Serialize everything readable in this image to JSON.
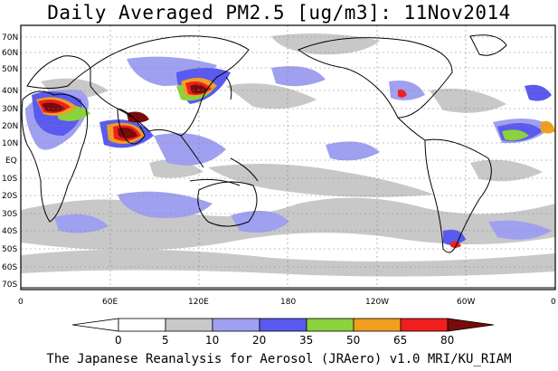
{
  "title": "Daily Averaged PM2.5 [ug/m3]: 11Nov2014",
  "credit": "The Japanese Reanalysis for Aerosol (JRAero) v1.0 MRI/KU_RIAM",
  "lat_labels": [
    "70N",
    "60N",
    "50N",
    "40N",
    "30N",
    "20N",
    "10N",
    "EQ",
    "10S",
    "20S",
    "30S",
    "40S",
    "50S",
    "60S",
    "70S"
  ],
  "lon_labels": [
    "0",
    "60E",
    "120E",
    "180",
    "120W",
    "60W",
    "0"
  ],
  "colorbar": {
    "levels": [
      "0",
      "5",
      "10",
      "20",
      "35",
      "50",
      "65",
      "80"
    ],
    "colors": [
      "#ffffff",
      "#c8c8c8",
      "#a0a0f0",
      "#5a5aee",
      "#8cd23c",
      "#f0a01e",
      "#f01e1e",
      "#7a0a0a"
    ]
  }
}
